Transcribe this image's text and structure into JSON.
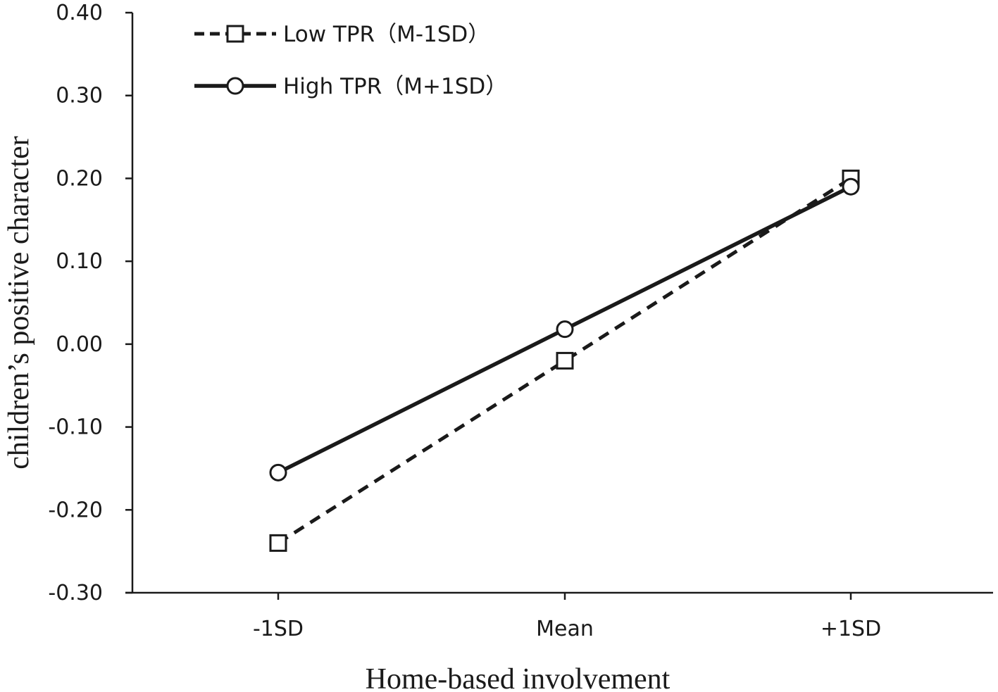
{
  "chart_data": {
    "type": "line",
    "title": "",
    "xlabel": "Home-based involvement",
    "ylabel": "children’s positive character",
    "categories": [
      "-1SD",
      "Mean",
      "+1SD"
    ],
    "ylim": [
      -0.3,
      0.4
    ],
    "yticks": [
      "-0.30",
      "-0.20",
      "-0.10",
      "0.00",
      "0.10",
      "0.20",
      "0.30",
      "0.40"
    ],
    "grid": false,
    "legend_position": "top-left",
    "series": [
      {
        "name": "Low TPR（M-1SD）",
        "values": [
          -0.24,
          -0.02,
          0.2
        ],
        "line_style": "dashed",
        "marker": "square",
        "color": "#1a1a1a"
      },
      {
        "name": "High TPR（M+1SD）",
        "values": [
          -0.155,
          0.018,
          0.19
        ],
        "line_style": "solid",
        "marker": "circle",
        "color": "#1a1a1a"
      }
    ]
  }
}
